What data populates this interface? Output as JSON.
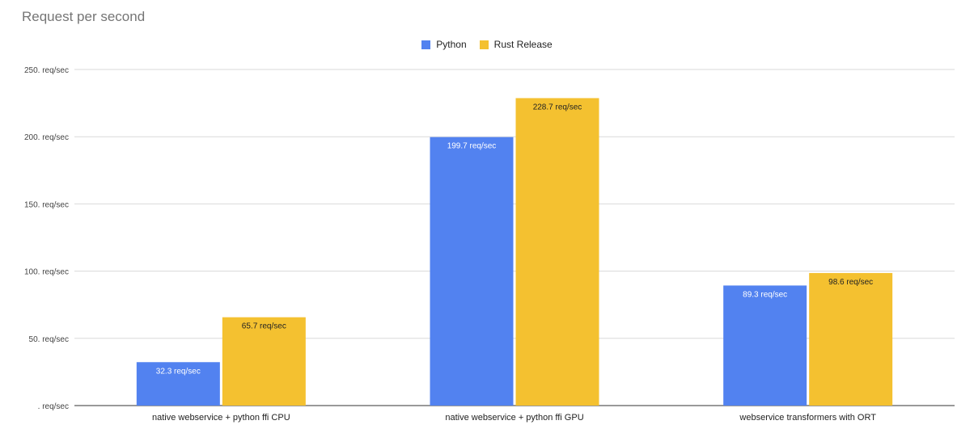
{
  "title": "Request per second",
  "colors": {
    "python": "#5282f0",
    "rust": "#f4c130",
    "grid": "#d9d9d9",
    "axis": "#333333"
  },
  "legend": [
    {
      "label": "Python",
      "color": "#5282f0"
    },
    {
      "label": "Rust Release",
      "color": "#f4c130"
    }
  ],
  "chart_data": {
    "type": "bar",
    "title": "Request per second",
    "categories": [
      "native webservice + python ffi CPU",
      "native webservice + python ffi GPU",
      "webservice transformers with ORT"
    ],
    "series": [
      {
        "name": "Python",
        "values": [
          32.3,
          199.7,
          89.3
        ],
        "labels": [
          "32.3 req/sec",
          "199.7 req/sec",
          "89.3 req/sec"
        ]
      },
      {
        "name": "Rust Release",
        "values": [
          65.7,
          228.7,
          98.6
        ],
        "labels": [
          "65.7 req/sec",
          "228.7 req/sec",
          "98.6 req/sec"
        ]
      }
    ],
    "ylim": [
      0,
      250
    ],
    "yticks": [
      0,
      50,
      100,
      150,
      200,
      250
    ],
    "ytick_labels": [
      ". req/sec",
      "50. req/sec",
      "100. req/sec",
      "150. req/sec",
      "200. req/sec",
      "250. req/sec"
    ],
    "grid": true,
    "legend_position": "top"
  }
}
